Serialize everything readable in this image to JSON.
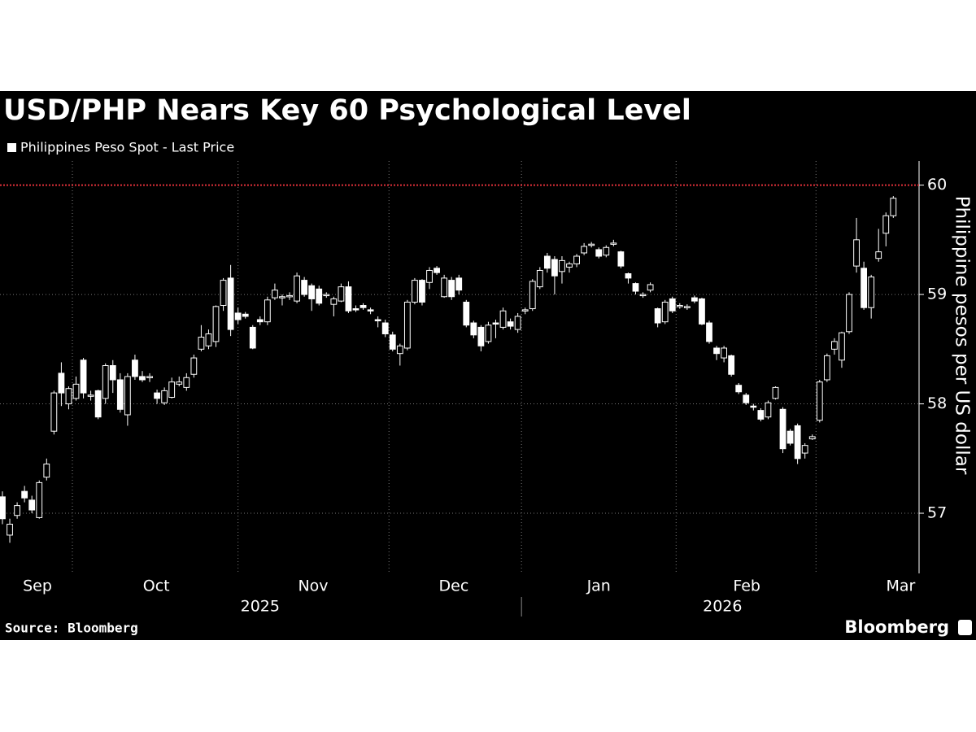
{
  "chart_data": {
    "type": "candlestick",
    "title": "USD/PHP Nears Key 60 Psychological Level",
    "legend": "Philippines Peso Spot - Last Price",
    "ylabel": "Philippine pesos per US dollar",
    "source": "Source: Bloomberg",
    "brand": "Bloomberg",
    "color": "#ffffff",
    "open": [
      57.15,
      56.8,
      56.98,
      57.2,
      57.12,
      56.96,
      57.33,
      57.75,
      58.28,
      58.0,
      58.05,
      58.4,
      58.07,
      58.12,
      58.05,
      58.35,
      58.22,
      57.9,
      58.4,
      58.25,
      58.24,
      58.1,
      58.01,
      58.06,
      58.18,
      58.15,
      58.27,
      58.5,
      58.53,
      58.57,
      58.9,
      59.15,
      58.83,
      58.82,
      58.7,
      58.77,
      58.75,
      58.97,
      58.97,
      58.98,
      58.94,
      59.13,
      59.08,
      59.05,
      59.0,
      58.91,
      58.94,
      59.07,
      58.87,
      58.9,
      58.86,
      58.77,
      58.74,
      58.63,
      58.46,
      58.51,
      58.93,
      59.13,
      59.11,
      59.24,
      58.98,
      59.13,
      59.15,
      58.93,
      58.74,
      58.7,
      58.57,
      58.74,
      58.7,
      58.75,
      58.68,
      58.85,
      58.87,
      59.07,
      59.35,
      59.32,
      59.21,
      59.25,
      59.28,
      59.38,
      59.45,
      59.41,
      59.36,
      59.46,
      59.39,
      59.19,
      59.1,
      59.0,
      59.04,
      58.87,
      58.75,
      58.96,
      58.89,
      58.89,
      58.97,
      58.96,
      58.74,
      58.51,
      58.42,
      58.44,
      58.17,
      58.08,
      57.98,
      57.94,
      57.88,
      58.05,
      57.95,
      57.75,
      57.8,
      57.55,
      57.68,
      57.85,
      58.22,
      58.5,
      58.4,
      58.66,
      59.26,
      59.24,
      58.88,
      59.33,
      59.56,
      59.72
    ],
    "high": [
      57.2,
      56.95,
      57.1,
      57.25,
      57.16,
      57.3,
      57.5,
      58.12,
      58.38,
      58.16,
      58.25,
      58.42,
      58.12,
      58.13,
      58.37,
      58.4,
      58.28,
      58.28,
      58.45,
      58.3,
      58.28,
      58.13,
      58.15,
      58.24,
      58.25,
      58.28,
      58.45,
      58.72,
      58.68,
      58.9,
      59.15,
      59.27,
      58.88,
      58.84,
      58.72,
      58.8,
      58.98,
      59.1,
      59.0,
      59.02,
      59.2,
      59.16,
      59.1,
      59.08,
      59.02,
      58.98,
      59.1,
      59.12,
      58.9,
      58.92,
      58.88,
      58.8,
      58.77,
      58.66,
      58.55,
      58.95,
      59.15,
      59.14,
      59.25,
      59.26,
      59.18,
      59.16,
      59.18,
      58.95,
      58.76,
      58.72,
      58.75,
      58.77,
      58.88,
      58.78,
      58.83,
      58.88,
      59.14,
      59.25,
      59.38,
      59.35,
      59.35,
      59.3,
      59.37,
      59.47,
      59.48,
      59.43,
      59.45,
      59.5,
      59.4,
      59.2,
      59.11,
      59.02,
      59.11,
      58.88,
      58.95,
      58.98,
      58.92,
      58.91,
      58.99,
      58.97,
      58.76,
      58.53,
      58.53,
      58.45,
      58.19,
      58.1,
      58.0,
      57.96,
      58.03,
      58.16,
      57.97,
      57.77,
      57.82,
      57.64,
      57.72,
      58.22,
      58.46,
      58.6,
      58.66,
      59.02,
      59.7,
      59.3,
      59.18,
      59.6,
      59.75,
      59.9
    ],
    "low": [
      56.9,
      56.73,
      56.95,
      57.1,
      57.0,
      56.95,
      57.3,
      57.72,
      57.98,
      57.95,
      58.03,
      58.05,
      58.03,
      57.86,
      58.0,
      58.1,
      57.92,
      57.8,
      58.22,
      58.2,
      58.2,
      58.0,
      57.99,
      58.05,
      58.16,
      58.12,
      58.24,
      58.48,
      58.5,
      58.52,
      58.85,
      58.62,
      58.73,
      58.78,
      58.5,
      58.72,
      58.72,
      58.95,
      58.9,
      58.95,
      58.92,
      58.98,
      58.85,
      58.9,
      58.97,
      58.8,
      58.93,
      58.83,
      58.84,
      58.86,
      58.82,
      58.7,
      58.61,
      58.48,
      58.35,
      58.49,
      58.91,
      58.9,
      59.05,
      59.18,
      58.97,
      58.95,
      59.0,
      58.7,
      58.6,
      58.48,
      58.55,
      58.6,
      58.68,
      58.68,
      58.65,
      58.82,
      58.85,
      59.05,
      59.2,
      59.0,
      59.1,
      59.2,
      59.25,
      59.36,
      59.43,
      59.33,
      59.34,
      59.44,
      59.24,
      59.1,
      59.0,
      58.97,
      59.02,
      58.7,
      58.73,
      58.83,
      58.87,
      58.86,
      58.92,
      58.72,
      58.55,
      58.4,
      58.38,
      58.25,
      58.09,
      57.99,
      57.94,
      57.84,
      57.86,
      58.04,
      57.55,
      57.62,
      57.45,
      57.5,
      57.67,
      57.83,
      58.2,
      58.45,
      58.33,
      58.64,
      59.2,
      58.86,
      58.78,
      59.3,
      59.44,
      59.7
    ],
    "close": [
      56.95,
      56.9,
      57.07,
      57.14,
      57.03,
      57.28,
      57.45,
      58.1,
      58.1,
      58.14,
      58.18,
      58.1,
      58.08,
      57.88,
      58.35,
      58.22,
      57.95,
      58.25,
      58.25,
      58.22,
      58.25,
      58.05,
      58.12,
      58.2,
      58.2,
      58.24,
      58.42,
      58.61,
      58.64,
      58.89,
      59.13,
      58.68,
      58.77,
      58.8,
      58.51,
      58.75,
      58.95,
      59.04,
      58.98,
      58.99,
      59.17,
      59.0,
      58.96,
      58.92,
      59.0,
      58.96,
      59.07,
      58.85,
      58.86,
      58.88,
      58.85,
      58.76,
      58.64,
      58.5,
      58.53,
      58.93,
      59.13,
      58.93,
      59.22,
      59.2,
      59.15,
      58.98,
      59.04,
      58.72,
      58.63,
      58.53,
      58.72,
      58.73,
      58.85,
      58.71,
      58.8,
      58.86,
      59.12,
      59.22,
      59.24,
      59.17,
      59.31,
      59.28,
      59.35,
      59.44,
      59.46,
      59.35,
      59.43,
      59.47,
      59.26,
      59.15,
      59.03,
      59.0,
      59.09,
      58.74,
      58.93,
      58.85,
      58.9,
      58.89,
      58.94,
      58.73,
      58.57,
      58.46,
      58.51,
      58.27,
      58.11,
      58.01,
      57.97,
      57.86,
      58.01,
      58.15,
      57.59,
      57.64,
      57.5,
      57.62,
      57.7,
      58.2,
      58.44,
      58.57,
      58.65,
      59.0,
      59.5,
      58.88,
      59.16,
      59.39,
      59.72,
      59.88
    ],
    "xlim": [
      -0.33,
      124.5
    ],
    "ylim": [
      56.45,
      60.22
    ],
    "yticks": [
      57,
      58,
      59,
      60
    ],
    "xgrid": [
      9.5,
      32,
      52.5,
      70.5,
      91.5,
      110.5
    ],
    "month_labels": [
      {
        "value": 4.75,
        "label": "Sep"
      },
      {
        "value": 20.9,
        "label": "Oct"
      },
      {
        "value": 42.2,
        "label": "Nov"
      },
      {
        "value": 61.3,
        "label": "Dec"
      },
      {
        "value": 81,
        "label": "Jan"
      },
      {
        "value": 101.1,
        "label": "Feb"
      },
      {
        "value": 122,
        "label": "Mar"
      }
    ],
    "year_labels": [
      {
        "value": 35,
        "label": "2025"
      },
      {
        "value": 97.8,
        "label": "2026"
      }
    ],
    "year_breaks": [
      70.5
    ],
    "reference_line": {
      "value": 60,
      "color": "#e0303a"
    }
  }
}
